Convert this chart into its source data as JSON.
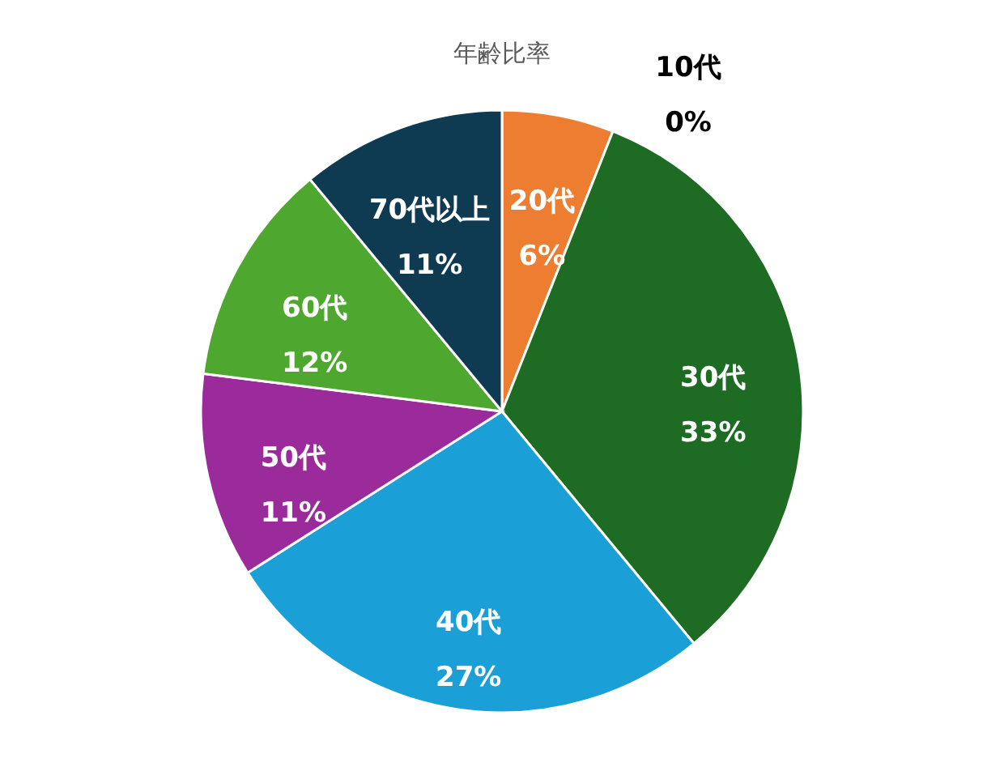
{
  "chart_data": {
    "type": "pie",
    "title": "年齢比率",
    "categories": [
      "10代",
      "20代",
      "30代",
      "40代",
      "50代",
      "60代",
      "70代以上"
    ],
    "values": [
      0,
      6,
      33,
      27,
      11,
      12,
      11
    ],
    "value_labels": [
      "0%",
      "6%",
      "33%",
      "27%",
      "11%",
      "12%",
      "11%"
    ],
    "colors": [
      "#9dc3e6",
      "#ed7d31",
      "#1e6b23",
      "#1a9fd6",
      "#9b2a9b",
      "#4ea72e",
      "#0e3a52"
    ],
    "legend": false
  }
}
